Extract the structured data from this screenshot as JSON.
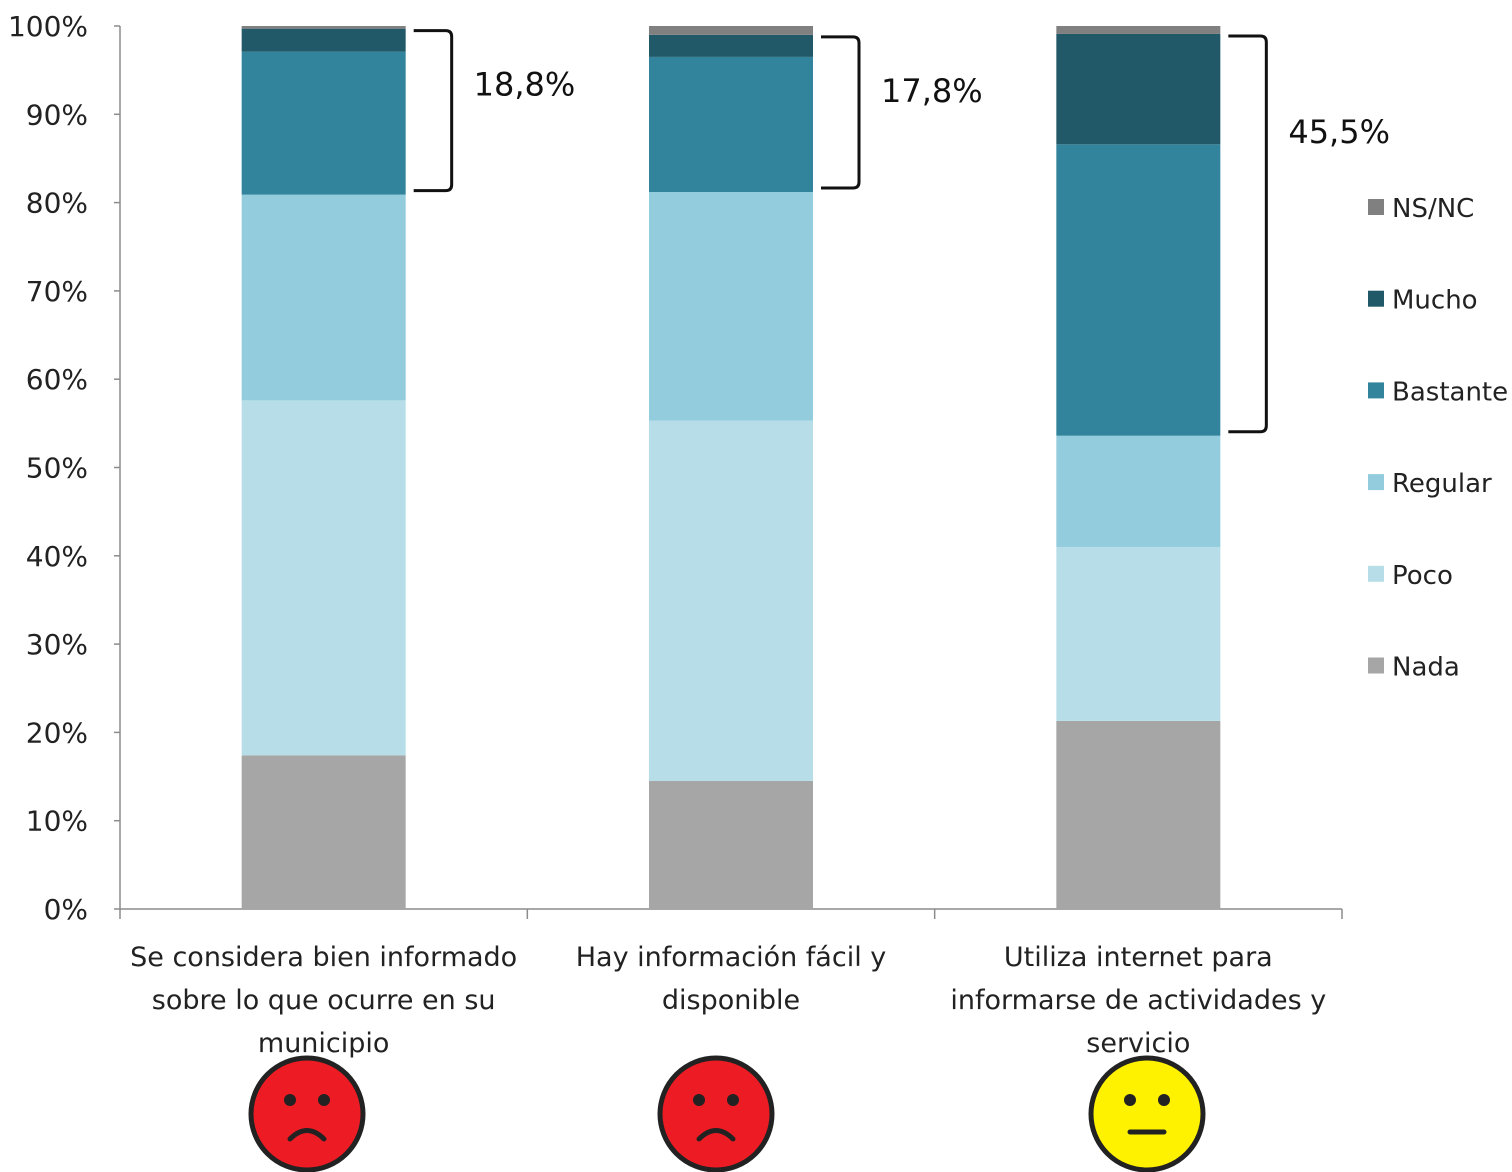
{
  "chart_data": {
    "type": "bar",
    "stacked": true,
    "ylim": [
      0,
      100
    ],
    "y_ticks": [
      "0%",
      "10%",
      "20%",
      "30%",
      "40%",
      "50%",
      "60%",
      "70%",
      "80%",
      "90%",
      "100%"
    ],
    "categories": [
      [
        "Se considera bien informado",
        "sobre lo que ocurre en su",
        "municipio"
      ],
      [
        "Hay información fácil y",
        "disponible"
      ],
      [
        "Utiliza internet para",
        "informarse de actividades y",
        "servicio"
      ]
    ],
    "series": [
      {
        "name": "Nada",
        "color": "#A6A6A6",
        "values": [
          17.4,
          14.5,
          21.3
        ]
      },
      {
        "name": "Poco",
        "color": "#B7DEE8",
        "values": [
          40.2,
          40.8,
          19.7
        ]
      },
      {
        "name": "Regular",
        "color": "#93CDDD",
        "values": [
          23.3,
          25.9,
          12.6
        ]
      },
      {
        "name": "Bastante",
        "color": "#31849B",
        "values": [
          16.2,
          15.3,
          33.0
        ]
      },
      {
        "name": "Mucho",
        "color": "#215968",
        "values": [
          2.6,
          2.5,
          12.5
        ]
      },
      {
        "name": "NS/NC",
        "color": "#808080",
        "values": [
          0.3,
          1.0,
          0.9
        ]
      }
    ],
    "legend": {
      "placement": "right",
      "order": [
        "NS/NC",
        "Mucho",
        "Bastante",
        "Regular",
        "Poco",
        "Nada"
      ]
    },
    "annotations": [
      {
        "category_index": 0,
        "label": "18,8%"
      },
      {
        "category_index": 1,
        "label": "17,8%"
      },
      {
        "category_index": 2,
        "label": "45,5%"
      }
    ],
    "faces": [
      "sad",
      "sad",
      "neutral"
    ],
    "face_colors": {
      "sad": "#ED1C24",
      "neutral": "#FFF200"
    }
  }
}
